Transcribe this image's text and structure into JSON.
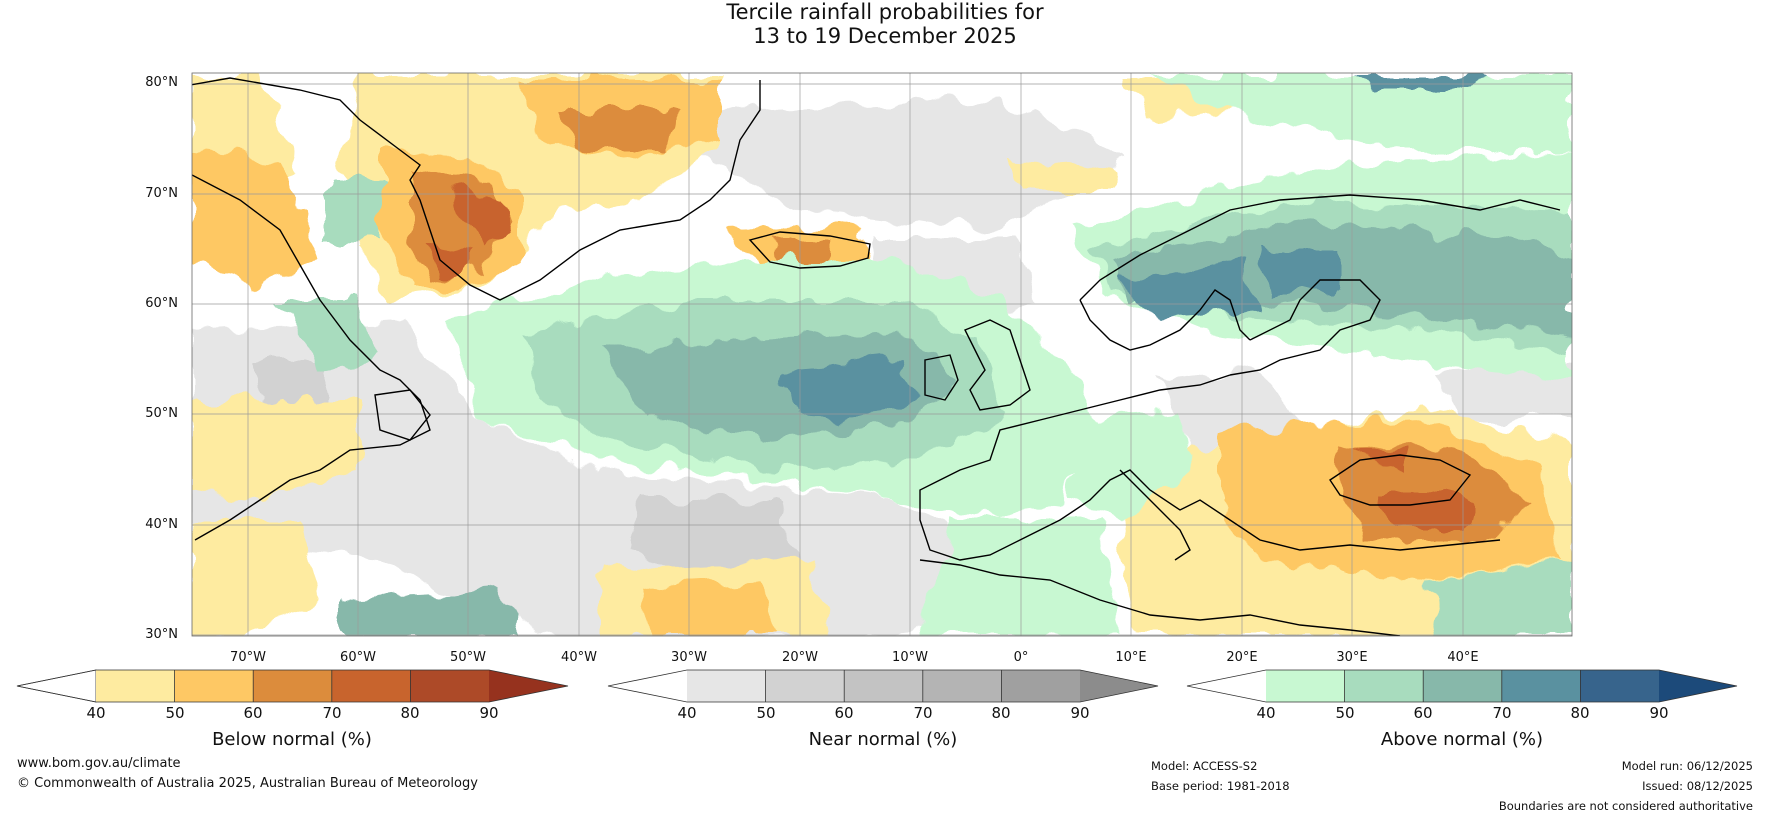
{
  "title": {
    "line1": "Tercile rainfall probabilities for",
    "line2": "13 to 19 December 2025"
  },
  "map": {
    "lat_labels": [
      "80°N",
      "70°N",
      "60°N",
      "50°N",
      "40°N",
      "30°N"
    ],
    "lon_labels": [
      "70°W",
      "60°W",
      "50°W",
      "40°W",
      "30°W",
      "20°W",
      "10°W",
      "0°",
      "10°E",
      "20°E",
      "30°E",
      "40°E"
    ]
  },
  "colorbars": [
    {
      "title": "Below normal (%)",
      "ticks": [
        "40",
        "50",
        "60",
        "70",
        "80",
        "90"
      ],
      "colors": [
        "#ffffff",
        "#feeba0",
        "#fec864",
        "#dc8c3c",
        "#c8642d",
        "#ad4a28",
        "#96321e"
      ]
    },
    {
      "title": "Near normal (%)",
      "ticks": [
        "40",
        "50",
        "60",
        "70",
        "80",
        "90"
      ],
      "colors": [
        "#ffffff",
        "#e6e6e6",
        "#d2d2d2",
        "#c3c3c3",
        "#b4b4b4",
        "#a0a0a0",
        "#8c8c8c"
      ]
    },
    {
      "title": "Above normal (%)",
      "ticks": [
        "40",
        "50",
        "60",
        "70",
        "80",
        "90"
      ],
      "colors": [
        "#ffffff",
        "#c8f8d2",
        "#a8dcbe",
        "#87b8aa",
        "#5a91a0",
        "#37648c",
        "#1c4a7a"
      ]
    }
  ],
  "footer": {
    "website": "www.bom.gov.au/climate",
    "copyright": "© Commonwealth of Australia 2025, Australian Bureau of Meteorology",
    "model": "Model: ACCESS-S2",
    "base_period": "Base period: 1981-2018",
    "model_run": "Model run: 06/12/2025",
    "issued": "Issued: 08/12/2025",
    "disclaimer": "Boundaries are not considered authoritative"
  }
}
